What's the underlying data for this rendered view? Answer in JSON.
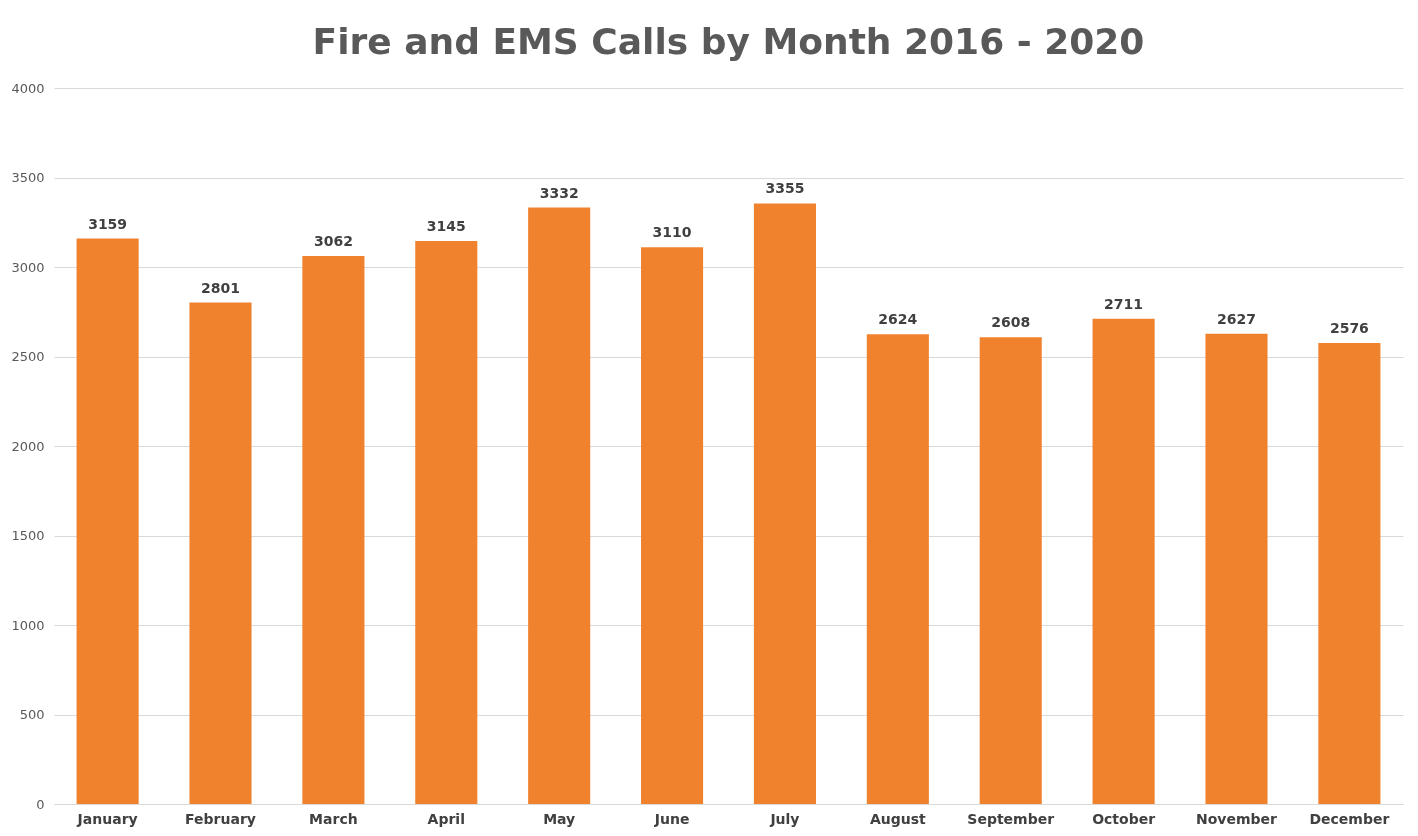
{
  "chart_data": {
    "type": "bar",
    "title": "Fire and EMS Calls by Month 2016 - 2020",
    "categories": [
      "January",
      "February",
      "March",
      "April",
      "May",
      "June",
      "July",
      "August",
      "September",
      "October",
      "November",
      "December"
    ],
    "values": [
      3159,
      2801,
      3062,
      3145,
      3332,
      3110,
      3355,
      2624,
      2608,
      2711,
      2627,
      2576
    ],
    "color": "#f0822e",
    "ylim": [
      0,
      4000
    ],
    "yticks": [
      0,
      500,
      1000,
      1500,
      2000,
      2500,
      3000,
      3500,
      4000
    ],
    "grid": "y",
    "data_labels": true
  }
}
